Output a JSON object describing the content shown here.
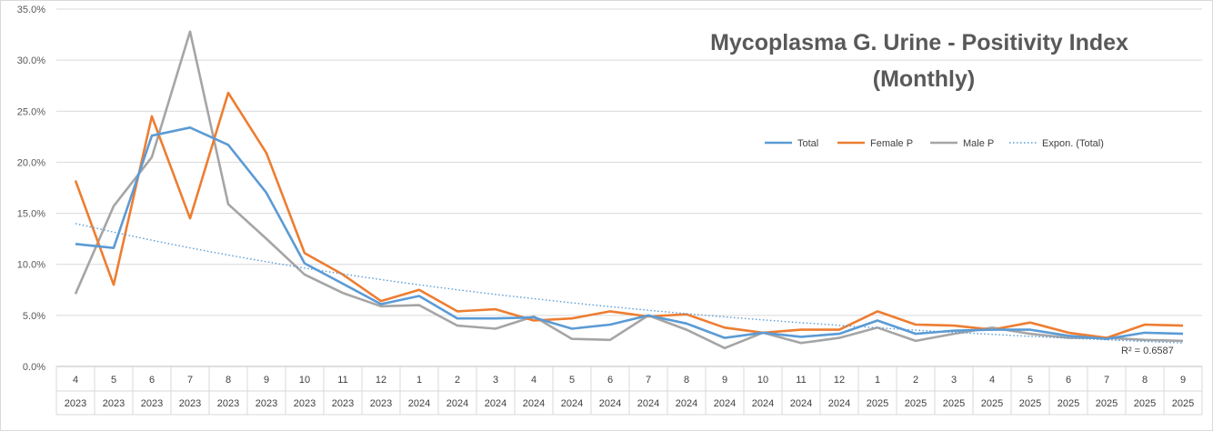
{
  "chart_data": {
    "type": "line",
    "title_lines": [
      "Mycoplasma G. Urine - Positivity Index",
      "(Monthly)"
    ],
    "y_ticks": [
      "0.0%",
      "5.0%",
      "10.0%",
      "15.0%",
      "20.0%",
      "25.0%",
      "30.0%",
      "35.0%"
    ],
    "ylim": [
      0,
      35
    ],
    "y_unit": "%",
    "grid": true,
    "legend_position": "top-right",
    "months": [
      "4",
      "5",
      "6",
      "7",
      "8",
      "9",
      "10",
      "11",
      "12",
      "1",
      "2",
      "3",
      "4",
      "5",
      "6",
      "7",
      "8",
      "9",
      "10",
      "11",
      "12",
      "1",
      "2",
      "3",
      "4",
      "5",
      "6",
      "7",
      "8",
      "9"
    ],
    "years": [
      "2023",
      "2023",
      "2023",
      "2023",
      "2023",
      "2023",
      "2023",
      "2023",
      "2023",
      "2024",
      "2024",
      "2024",
      "2024",
      "2024",
      "2024",
      "2024",
      "2024",
      "2024",
      "2024",
      "2024",
      "2024",
      "2025",
      "2025",
      "2025",
      "2025",
      "2025",
      "2025",
      "2025",
      "2025",
      "2025"
    ],
    "series": [
      {
        "name": "Total",
        "color": "#5b9bd5",
        "values": [
          12.0,
          11.6,
          22.6,
          23.4,
          21.7,
          17.0,
          10.1,
          8.1,
          6.1,
          6.9,
          4.7,
          4.7,
          4.8,
          3.7,
          4.1,
          5.0,
          4.2,
          2.8,
          3.3,
          2.9,
          3.2,
          4.5,
          3.2,
          3.5,
          3.6,
          3.6,
          3.0,
          2.7,
          3.3,
          3.2
        ]
      },
      {
        "name": "Female P",
        "color": "#ed7d31",
        "values": [
          18.2,
          8.0,
          24.5,
          14.5,
          26.8,
          20.9,
          11.1,
          9.0,
          6.4,
          7.5,
          5.4,
          5.6,
          4.5,
          4.7,
          5.4,
          4.9,
          5.1,
          3.8,
          3.3,
          3.6,
          3.6,
          5.4,
          4.1,
          4.0,
          3.6,
          4.3,
          3.3,
          2.8,
          4.1,
          4.0
        ]
      },
      {
        "name": "Male P",
        "color": "#a5a5a5",
        "values": [
          7.1,
          15.7,
          20.5,
          32.8,
          15.9,
          12.5,
          9.0,
          7.2,
          5.9,
          6.0,
          4.0,
          3.7,
          4.9,
          2.7,
          2.6,
          5.0,
          3.6,
          1.8,
          3.3,
          2.3,
          2.8,
          3.8,
          2.5,
          3.2,
          3.8,
          3.2,
          2.8,
          2.8,
          2.6,
          2.5
        ]
      }
    ],
    "trendline": {
      "name": "Expon. (Total)",
      "type": "exponential",
      "of": "Total",
      "color": "#5b9bd5",
      "start": 14.0,
      "end": 2.3,
      "r2_label": "R² = 0.6587"
    }
  }
}
